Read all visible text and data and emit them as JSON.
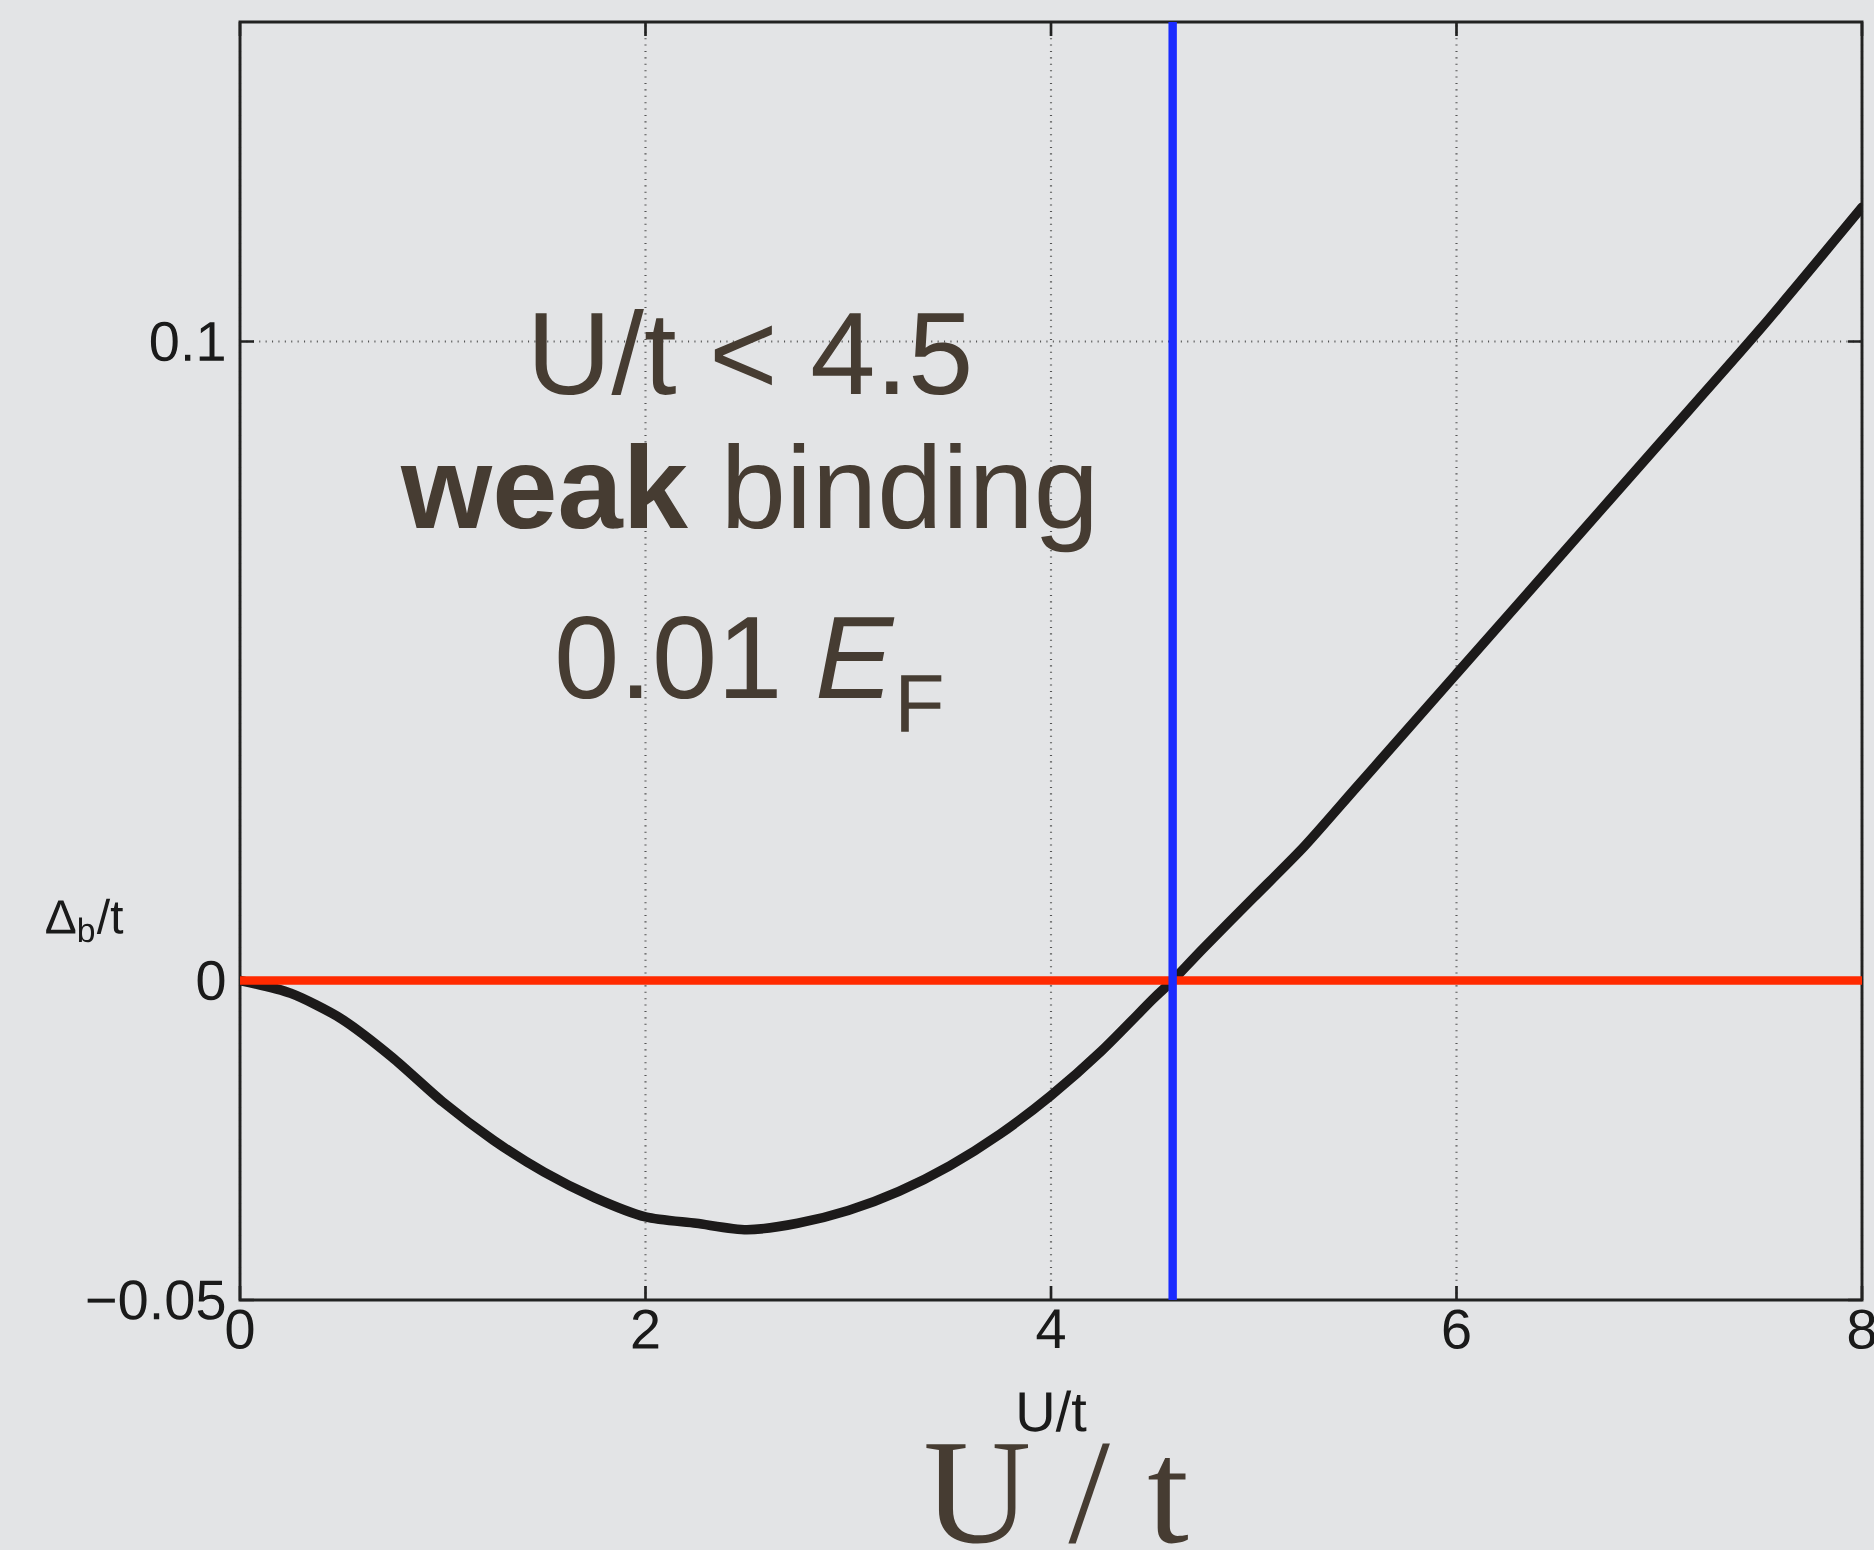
{
  "chart_data": {
    "type": "line",
    "xlabel": "U/t",
    "ylabel": "Δ$_{b}$/t",
    "annotations": [
      "U/t < 4.5",
      "**weak** binding",
      "0.01 *E*$_{F}$",
      "U / t"
    ],
    "x": [
      0,
      0.25,
      0.5,
      0.75,
      1,
      1.25,
      1.5,
      1.75,
      2,
      2.25,
      2.5,
      2.75,
      3,
      3.25,
      3.5,
      3.75,
      4,
      4.25,
      4.5,
      4.6,
      4.75,
      5,
      5.25,
      5.5,
      5.75,
      6,
      6.5,
      7,
      7.5,
      8
    ],
    "series": [
      {
        "color": "#1c1a1a",
        "values": [
          0,
          -0.002,
          -0.006,
          -0.012,
          -0.019,
          -0.025,
          -0.03,
          -0.034,
          -0.037,
          -0.038,
          -0.039,
          -0.038,
          -0.036,
          -0.033,
          -0.029,
          -0.024,
          -0.018,
          -0.011,
          -0.003,
          0,
          0.005,
          0.013,
          0.021,
          0.03,
          0.039,
          0.048,
          0.066,
          0.084,
          0.102,
          0.121
        ]
      }
    ],
    "xlim": [
      0,
      8
    ],
    "ylim": [
      -0.05,
      0.15
    ],
    "xticks": [
      0,
      2,
      4,
      6,
      8
    ],
    "yticks": [
      {
        "value": -0.05,
        "label": "−0.05"
      },
      0,
      0.1
    ],
    "grid": true,
    "ref_lines": [
      {
        "axis": "y",
        "value": 0,
        "color": "#ff2a00"
      },
      {
        "axis": "x",
        "value": 4.6,
        "color": "#1a2bff"
      }
    ]
  }
}
